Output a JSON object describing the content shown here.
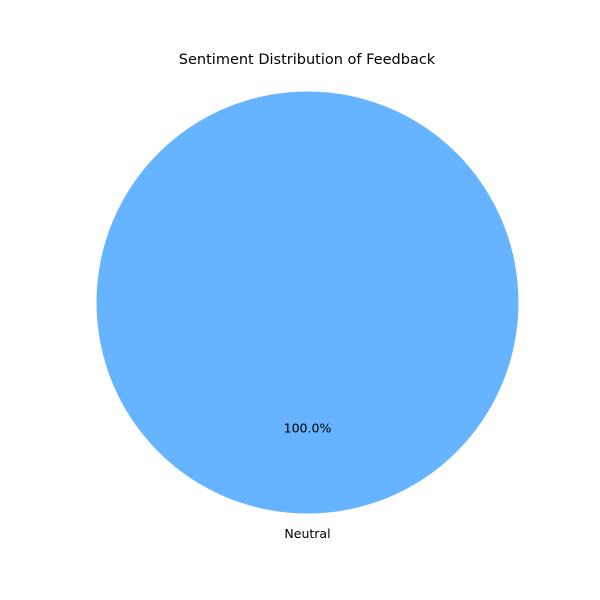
{
  "chart_data": {
    "type": "pie",
    "title": "Sentiment Distribution of Feedback",
    "slices": [
      {
        "label": "Neutral",
        "value": 100.0,
        "percent_label": "100.0%",
        "color": "#66b3ff"
      }
    ]
  }
}
